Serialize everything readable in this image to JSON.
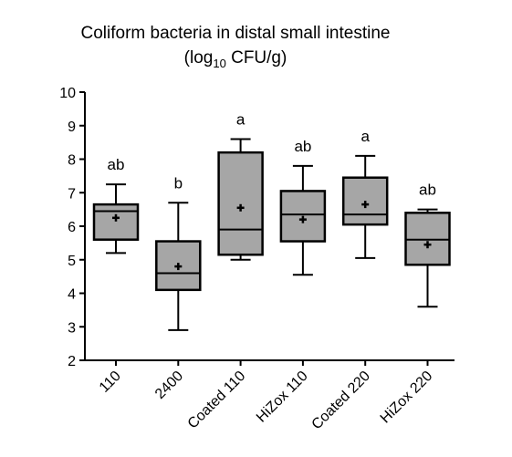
{
  "chart_data": {
    "type": "box",
    "title_line1": "Coliform bacteria in distal small intestine",
    "title_line2_prefix": "(log",
    "title_line2_sub": "10",
    "title_line2_suffix": " CFU/g)",
    "ylim": [
      2,
      10
    ],
    "yticks": [
      "2",
      "3",
      "4",
      "5",
      "6",
      "7",
      "8",
      "9",
      "10"
    ],
    "box_color": "#a6a6a6",
    "categories": [
      "110",
      "2400",
      "Coated 110",
      "HiZox 110",
      "Coated 220",
      "HiZox 220"
    ],
    "boxes": [
      {
        "min": 5.2,
        "q1": 5.6,
        "median": 6.45,
        "q3": 6.65,
        "max": 7.25,
        "mean": 6.25,
        "letter": "ab"
      },
      {
        "min": 2.9,
        "q1": 4.1,
        "median": 4.6,
        "q3": 5.55,
        "max": 6.7,
        "mean": 4.8,
        "letter": "b"
      },
      {
        "min": 5.0,
        "q1": 5.15,
        "median": 5.9,
        "q3": 8.2,
        "max": 8.6,
        "mean": 6.55,
        "letter": "a"
      },
      {
        "min": 4.55,
        "q1": 5.55,
        "median": 6.35,
        "q3": 7.05,
        "max": 7.8,
        "mean": 6.2,
        "letter": "ab"
      },
      {
        "min": 5.05,
        "q1": 6.05,
        "median": 6.35,
        "q3": 7.45,
        "max": 8.1,
        "mean": 6.65,
        "letter": "a"
      },
      {
        "min": 3.6,
        "q1": 4.85,
        "median": 5.6,
        "q3": 6.4,
        "max": 6.5,
        "mean": 5.45,
        "letter": "ab"
      }
    ]
  }
}
